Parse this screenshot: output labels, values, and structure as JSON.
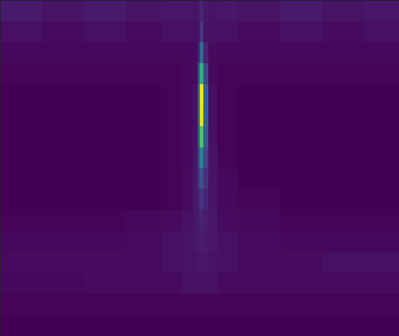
{
  "chart_data": {
    "type": "heatmap",
    "x_edges": [
      0,
      60,
      120,
      180,
      230,
      260,
      275,
      282,
      285,
      290,
      297,
      310,
      340,
      400,
      460,
      520,
      569
    ],
    "y_edges": [
      0,
      30,
      60,
      90,
      120,
      150,
      180,
      210,
      240,
      270,
      300,
      330,
      360,
      390,
      420,
      450,
      480
    ],
    "cells": [
      [
        0.07,
        0.05,
        0.07,
        0.05,
        0.06,
        0.06,
        0.05,
        0.06,
        0.1,
        0.06,
        0.05,
        0.06,
        0.05,
        0.07,
        0.05,
        0.06
      ],
      [
        0.04,
        0.03,
        0.04,
        0.03,
        0.04,
        0.04,
        0.04,
        0.05,
        0.15,
        0.05,
        0.04,
        0.04,
        0.03,
        0.04,
        0.03,
        0.04
      ],
      [
        0.02,
        0.02,
        0.02,
        0.02,
        0.02,
        0.02,
        0.03,
        0.1,
        0.35,
        0.1,
        0.03,
        0.02,
        0.02,
        0.02,
        0.02,
        0.02
      ],
      [
        0.01,
        0.01,
        0.01,
        0.01,
        0.01,
        0.02,
        0.03,
        0.25,
        0.65,
        0.22,
        0.03,
        0.01,
        0.01,
        0.01,
        0.01,
        0.01
      ],
      [
        0,
        0,
        0,
        0,
        0.01,
        0.02,
        0.04,
        0.35,
        0.97,
        0.3,
        0.04,
        0.01,
        0,
        0,
        0,
        0
      ],
      [
        0,
        0,
        0,
        0,
        0.01,
        0.02,
        0.04,
        0.35,
        0.95,
        0.3,
        0.04,
        0.01,
        0,
        0,
        0,
        0
      ],
      [
        0,
        0,
        0,
        0,
        0.01,
        0.02,
        0.04,
        0.3,
        0.72,
        0.28,
        0.04,
        0.01,
        0,
        0,
        0,
        0
      ],
      [
        0,
        0,
        0,
        0,
        0.01,
        0.02,
        0.05,
        0.22,
        0.45,
        0.2,
        0.05,
        0.01,
        0,
        0,
        0,
        0
      ],
      [
        0,
        0,
        0,
        0,
        0.01,
        0.03,
        0.06,
        0.15,
        0.25,
        0.14,
        0.05,
        0.02,
        0,
        0,
        0,
        0
      ],
      [
        0,
        0,
        0,
        0,
        0.01,
        0.03,
        0.06,
        0.1,
        0.15,
        0.1,
        0.05,
        0.02,
        0.01,
        0,
        0,
        0
      ],
      [
        0.01,
        0.01,
        0.01,
        0.02,
        0.03,
        0.04,
        0.06,
        0.08,
        0.1,
        0.08,
        0.06,
        0.03,
        0.02,
        0.01,
        0.01,
        0.01
      ],
      [
        0.02,
        0.02,
        0.02,
        0.03,
        0.04,
        0.05,
        0.06,
        0.07,
        0.08,
        0.07,
        0.06,
        0.04,
        0.03,
        0.02,
        0.02,
        0.02
      ],
      [
        0.03,
        0.03,
        0.03,
        0.03,
        0.04,
        0.05,
        0.05,
        0.06,
        0.06,
        0.06,
        0.05,
        0.04,
        0.03,
        0.03,
        0.04,
        0.04
      ],
      [
        0.02,
        0.02,
        0.03,
        0.03,
        0.03,
        0.04,
        0.04,
        0.04,
        0.04,
        0.04,
        0.04,
        0.03,
        0.03,
        0.03,
        0.03,
        0.03
      ],
      [
        0.01,
        0.01,
        0.01,
        0.01,
        0.01,
        0.01,
        0.01,
        0.01,
        0.01,
        0.01,
        0.01,
        0.01,
        0.01,
        0.01,
        0.01,
        0.01
      ],
      [
        0,
        0,
        0,
        0,
        0,
        0,
        0,
        0,
        0,
        0,
        0,
        0,
        0,
        0,
        0,
        0
      ]
    ],
    "color_range": [
      0,
      1
    ],
    "color": "viridis",
    "tick_labels": false
  }
}
